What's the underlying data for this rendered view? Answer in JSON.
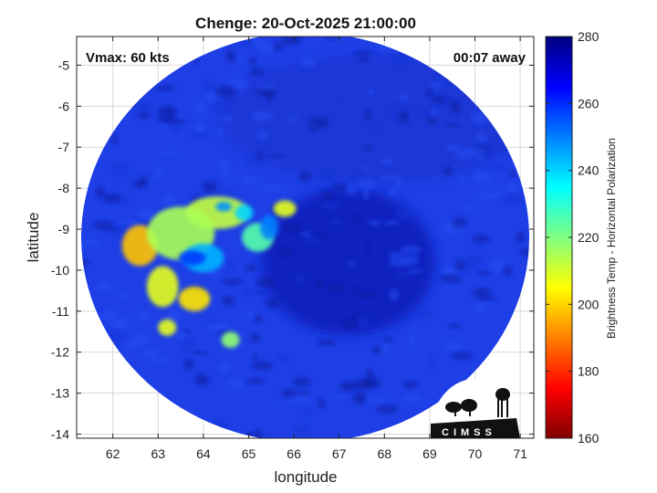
{
  "chart_data": {
    "type": "heatmap",
    "title": "Chenge: 20-Oct-2025 21:00:00",
    "xlabel": "longitude",
    "ylabel": "latitude",
    "xlim": [
      61.2,
      71.3
    ],
    "ylim": [
      -14.1,
      -4.3
    ],
    "x_ticks": [
      "62",
      "63",
      "64",
      "65",
      "66",
      "67",
      "68",
      "69",
      "70",
      "71"
    ],
    "y_ticks": [
      "-5",
      "-6",
      "-7",
      "-8",
      "-9",
      "-10",
      "-11",
      "-12",
      "-13",
      "-14"
    ],
    "grid": true,
    "colorbar": {
      "label": "Brightness Temp - Horizontal Polarization",
      "range": [
        160,
        280
      ],
      "ticks": [
        "280",
        "260",
        "240",
        "220",
        "200",
        "180",
        "160"
      ],
      "colormap": "jet"
    },
    "annotations": {
      "vmax": "Vmax: 60 kts",
      "time_offset": "00:07 away"
    },
    "swath": {
      "center_lon": 66.25,
      "center_lat": -9.2,
      "radius_lon": 4.95,
      "radius_lat": 5.0
    },
    "storm_center": {
      "lon": 67.2,
      "lat": -9.8
    },
    "cold_features_K": [
      {
        "lon": 63.5,
        "lat": -9.1,
        "rlon": 0.75,
        "rlat": 0.65,
        "t": 225
      },
      {
        "lon": 64.0,
        "lat": -9.7,
        "rlon": 0.45,
        "rlat": 0.35,
        "t": 196
      },
      {
        "lon": 63.75,
        "lat": -9.7,
        "rlon": 0.3,
        "rlat": 0.18,
        "t": 182
      },
      {
        "lon": 64.3,
        "lat": -8.6,
        "rlon": 0.7,
        "rlat": 0.4,
        "t": 228
      },
      {
        "lon": 64.45,
        "lat": -8.45,
        "rlon": 0.18,
        "rlat": 0.12,
        "t": 192
      },
      {
        "lon": 65.45,
        "lat": -8.95,
        "rlon": 0.2,
        "rlat": 0.3,
        "t": 190
      },
      {
        "lon": 65.2,
        "lat": -9.2,
        "rlon": 0.35,
        "rlat": 0.35,
        "t": 215
      },
      {
        "lon": 64.9,
        "lat": -8.6,
        "rlon": 0.2,
        "rlat": 0.2,
        "t": 200
      },
      {
        "lon": 63.1,
        "lat": -10.4,
        "rlon": 0.35,
        "rlat": 0.5,
        "t": 232
      },
      {
        "lon": 63.8,
        "lat": -10.7,
        "rlon": 0.35,
        "rlat": 0.3,
        "t": 238
      },
      {
        "lon": 64.6,
        "lat": -11.7,
        "rlon": 0.2,
        "rlat": 0.2,
        "t": 222
      },
      {
        "lon": 63.2,
        "lat": -11.4,
        "rlon": 0.2,
        "rlat": 0.2,
        "t": 232
      },
      {
        "lon": 65.8,
        "lat": -8.5,
        "rlon": 0.25,
        "rlat": 0.2,
        "t": 232
      },
      {
        "lon": 62.6,
        "lat": -9.4,
        "rlon": 0.4,
        "rlat": 0.5,
        "t": 242
      }
    ]
  },
  "logo": {
    "text": "CIMSS"
  },
  "colors": {
    "axes_bg": "#ffffff",
    "frame": "#222222",
    "grid": "#d8d8d8"
  }
}
